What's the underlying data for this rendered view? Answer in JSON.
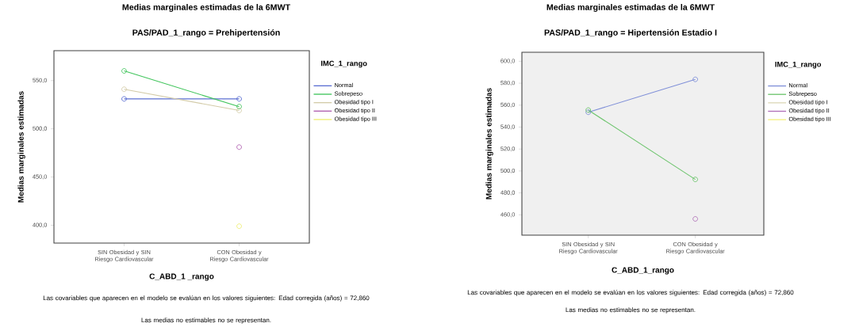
{
  "chart_data": [
    {
      "type": "line",
      "title": "Medias marginales estimadas de la 6MWT",
      "subtitle": "PAS/PAD_1_rango = Prehipertensión",
      "xlabel": "C_ABD_1 _rango",
      "ylabel": "Medias marginales  estimadas",
      "legend_title": "IMC_1_rango",
      "categories": [
        "SIN Obesidad y SIN Riesgo Cardiovascular",
        "CON Obesidad y Riesgo Cardiovascular"
      ],
      "series": [
        {
          "name": "Normal",
          "color": "#5b6fd2",
          "values": [
            531,
            531
          ]
        },
        {
          "name": "Sobrepeso",
          "color": "#3fc45a",
          "values": [
            560,
            523
          ]
        },
        {
          "name": "Obesidad tipo I",
          "color": "#d3cba8",
          "values": [
            541,
            519
          ]
        },
        {
          "name": "Obesidad tipo II",
          "color": "#b060b0",
          "values": [
            null,
            481
          ]
        },
        {
          "name": "Obesidad tipo III",
          "color": "#eeee70",
          "values": [
            null,
            399
          ]
        }
      ],
      "ylim": [
        381.5,
        581
      ],
      "yticks": [
        {
          "value": 400,
          "label": "400,0"
        },
        {
          "value": 450,
          "label": "450,0"
        },
        {
          "value": 500,
          "label": "500,0"
        },
        {
          "value": 550,
          "label": "550,0"
        }
      ],
      "marker": "circle",
      "legend": "right",
      "grid": false,
      "annotations": [
        "Las covariables que aparecen en el modelo se evalúan en los valores siguientes: Edad corregida (años) = 72,860",
        "Las medias no estimables no se representan."
      ]
    },
    {
      "type": "line",
      "title": "Medias marginales estimadas de la 6MWT",
      "subtitle": "PAS/PAD_1_rango = Hipertensión Estadio I",
      "xlabel": "C_ABD_1_rango",
      "ylabel": "Medias marginales  estimadas",
      "legend_title": "IMC_1_rango",
      "categories": [
        "SIN Obesidad y SIN Riesgo Cardiovascular",
        "CON Obesidad y Riesgo Cardiovascular"
      ],
      "series": [
        {
          "name": "Normal",
          "color": "#7f8fd8",
          "values": [
            553.5,
            583.5
          ]
        },
        {
          "name": "Sobrepeso",
          "color": "#6cc46c",
          "values": [
            555.5,
            492.3
          ]
        },
        {
          "name": "Obesidad tipo I",
          "color": "#ddd8b8",
          "values": [
            null,
            null
          ]
        },
        {
          "name": "Obesidad tipo II",
          "color": "#b070b8",
          "values": [
            null,
            456.3
          ]
        },
        {
          "name": "Obesidad tipo III",
          "color": "#f4f080",
          "values": [
            null,
            null
          ]
        }
      ],
      "ylim": [
        441.5,
        608.2
      ],
      "yticks": [
        {
          "value": 460,
          "label": "460,0"
        },
        {
          "value": 480,
          "label": "480,0"
        },
        {
          "value": 500,
          "label": "500,0"
        },
        {
          "value": 520,
          "label": "520,0"
        },
        {
          "value": 540,
          "label": "540,0"
        },
        {
          "value": 560,
          "label": "560,0"
        },
        {
          "value": 580,
          "label": "580,0"
        },
        {
          "value": 600,
          "label": "600,0"
        }
      ],
      "marker": "circle",
      "legend": "right",
      "grid": false,
      "annotations": [
        "Las covariables que aparecen en el modelo se evalúan en los valores siguientes: Edad corregida (años) = 72,860",
        "Las medias no estimables no se representan."
      ]
    }
  ]
}
